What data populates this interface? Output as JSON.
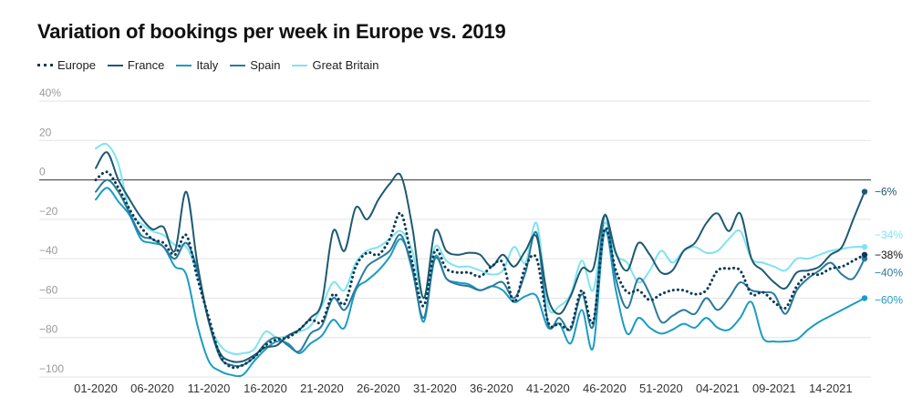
{
  "title": "Variation of bookings per week in Europe vs. 2019",
  "chart_data": {
    "type": "line",
    "title": "Variation of bookings per week in Europe vs. 2019",
    "xlabel": "",
    "ylabel": "",
    "ylim": [
      -100,
      40
    ],
    "y_ticks": [
      40,
      20,
      0,
      -20,
      -40,
      -60,
      -80,
      -100
    ],
    "y_tick_labels": [
      "40%",
      "20",
      "0",
      "−20",
      "−40",
      "−60",
      "−80",
      "−100"
    ],
    "x_tick_labels": [
      "01-2020",
      "06-2020",
      "11-2020",
      "16-2020",
      "21-2020",
      "26-2020",
      "31-2020",
      "36-2020",
      "41-2020",
      "46-2020",
      "51-2020",
      "04-2021",
      "09-2021",
      "14-2021"
    ],
    "weeks_count": 69,
    "series": [
      {
        "name": "Europe",
        "style": "dotted",
        "color": "#0b3a55",
        "end_label": "−38%",
        "values": [
          0,
          4,
          -4,
          -15,
          -24,
          -30,
          -32,
          -38,
          -28,
          -50,
          -70,
          -89,
          -95,
          -94,
          -90,
          -84,
          -81,
          -80,
          -76,
          -71,
          -72,
          -58,
          -63,
          -44,
          -37,
          -38,
          -30,
          -17,
          -42,
          -64,
          -36,
          -45,
          -47,
          -47,
          -49,
          -44,
          -42,
          -62,
          -44,
          -40,
          -72,
          -73,
          -75,
          -56,
          -72,
          -25,
          -46,
          -57,
          -56,
          -61,
          -58,
          -56,
          -56,
          -58,
          -56,
          -46,
          -45,
          -46,
          -58,
          -57,
          -62,
          -65,
          -54,
          -48,
          -48,
          -45,
          -44,
          -41,
          -38
        ]
      },
      {
        "name": "France",
        "style": "solid",
        "color": "#1d5a72",
        "end_label": "−6%",
        "values": [
          6,
          14,
          0,
          -10,
          -19,
          -25,
          -24,
          -36,
          -6,
          -43,
          -72,
          -88,
          -92,
          -92,
          -89,
          -85,
          -84,
          -79,
          -76,
          -70,
          -62,
          -26,
          -36,
          -14,
          -20,
          -10,
          -2,
          2,
          -24,
          -60,
          -26,
          -36,
          -38,
          -37,
          -38,
          -44,
          -38,
          -44,
          -36,
          -29,
          -60,
          -68,
          -59,
          -45,
          -45,
          -18,
          -37,
          -46,
          -32,
          -38,
          -47,
          -46,
          -36,
          -32,
          -22,
          -17,
          -26,
          -17,
          -40,
          -46,
          -52,
          -55,
          -47,
          -46,
          -44,
          -38,
          -34,
          -20,
          -6
        ]
      },
      {
        "name": "Italy",
        "style": "solid",
        "color": "#1a9cc4",
        "end_label": "−60%",
        "values": [
          -10,
          -4,
          -11,
          -18,
          -30,
          -32,
          -34,
          -44,
          -48,
          -74,
          -92,
          -97,
          -99,
          -99,
          -92,
          -86,
          -82,
          -83,
          -88,
          -83,
          -79,
          -71,
          -75,
          -56,
          -51,
          -46,
          -39,
          -30,
          -44,
          -72,
          -39,
          -50,
          -52,
          -53,
          -56,
          -54,
          -56,
          -62,
          -59,
          -59,
          -75,
          -73,
          -83,
          -66,
          -85,
          -26,
          -56,
          -78,
          -70,
          -75,
          -78,
          -76,
          -73,
          -75,
          -70,
          -75,
          -76,
          -70,
          -62,
          -80,
          -82,
          -82,
          -81,
          -76,
          -72,
          -69,
          -66,
          -63,
          -60
        ]
      },
      {
        "name": "Spain",
        "style": "solid",
        "color": "#2b7a9c",
        "end_label": "−40%",
        "values": [
          -6,
          0,
          -6,
          -17,
          -28,
          -30,
          -34,
          -40,
          -32,
          -46,
          -72,
          -90,
          -94,
          -94,
          -90,
          -83,
          -80,
          -84,
          -87,
          -78,
          -74,
          -60,
          -66,
          -55,
          -44,
          -40,
          -36,
          -28,
          -46,
          -70,
          -40,
          -50,
          -53,
          -54,
          -56,
          -54,
          -52,
          -60,
          -47,
          -27,
          -73,
          -70,
          -76,
          -58,
          -74,
          -18,
          -50,
          -65,
          -50,
          -58,
          -72,
          -69,
          -66,
          -68,
          -60,
          -66,
          -60,
          -52,
          -56,
          -57,
          -58,
          -68,
          -56,
          -50,
          -46,
          -42,
          -48,
          -50,
          -40
        ]
      },
      {
        "name": "Great Britain",
        "style": "solid",
        "color": "#7fe3f0",
        "end_label": "−34%",
        "values": [
          16,
          18,
          8,
          -16,
          -22,
          -26,
          -28,
          -33,
          -34,
          -48,
          -72,
          -84,
          -88,
          -88,
          -86,
          -77,
          -80,
          -79,
          -77,
          -74,
          -64,
          -52,
          -56,
          -42,
          -36,
          -34,
          -30,
          -26,
          -36,
          -60,
          -34,
          -41,
          -44,
          -44,
          -46,
          -48,
          -46,
          -34,
          -42,
          -22,
          -64,
          -64,
          -58,
          -41,
          -56,
          -22,
          -38,
          -42,
          -52,
          -46,
          -36,
          -42,
          -36,
          -34,
          -37,
          -36,
          -30,
          -26,
          -40,
          -42,
          -44,
          -46,
          -40,
          -40,
          -38,
          -36,
          -35,
          -34,
          -34
        ]
      }
    ]
  }
}
